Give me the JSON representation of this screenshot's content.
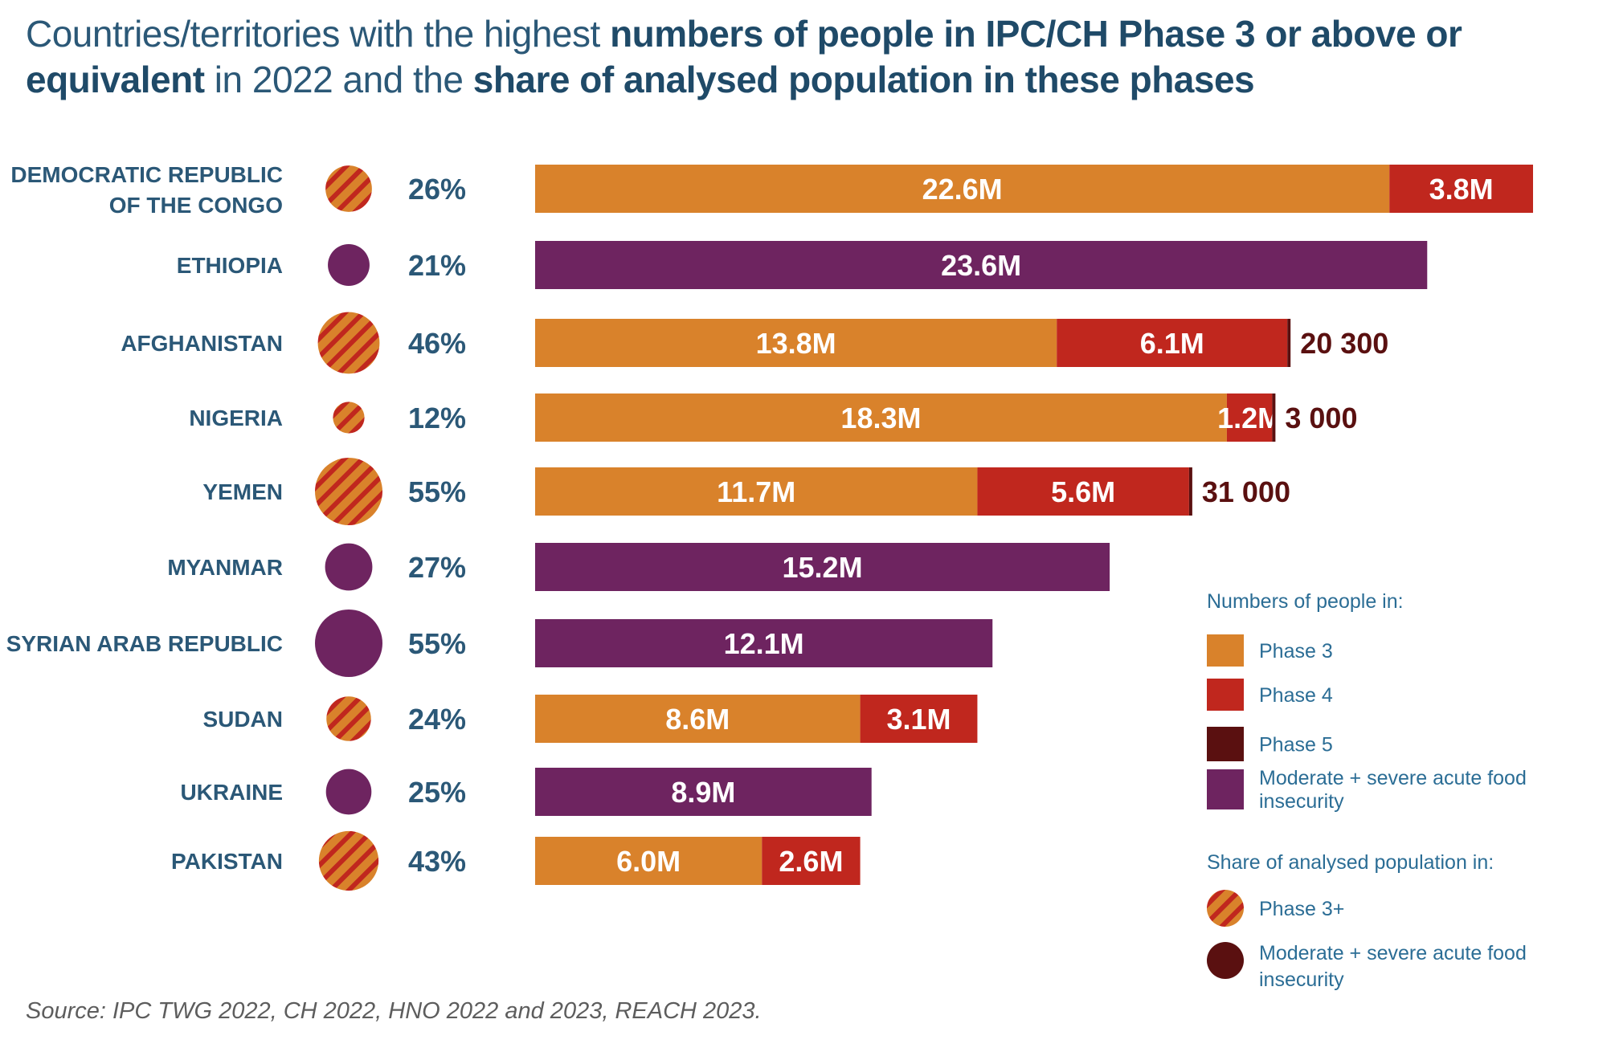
{
  "title": {
    "part1": "Countries/territories with the highest ",
    "bold1": "numbers of people in IPC/CH Phase 3 or above or equivalent",
    "part2": " in 2022 and the ",
    "bold2": "share of analysed population in these phases"
  },
  "colors": {
    "phase3": "#d9822b",
    "phase4": "#c0271e",
    "phase5": "#5a1010",
    "moderate_severe": "#6e2460",
    "stripe": "#c0271e"
  },
  "chart_data": {
    "type": "bar",
    "orientation": "horizontal",
    "stacked": true,
    "unit": "millions of people",
    "categories": [
      [
        "DEMOCRATIC REPUBLIC",
        "OF THE CONGO"
      ],
      [
        "ETHIOPIA"
      ],
      [
        "AFGHANISTAN"
      ],
      [
        "NIGERIA"
      ],
      [
        "YEMEN"
      ],
      [
        "MYANMAR"
      ],
      [
        "SYRIAN ARAB REPUBLIC"
      ],
      [
        "SUDAN"
      ],
      [
        "UKRAINE"
      ],
      [
        "PAKISTAN"
      ]
    ],
    "rows": [
      {
        "share": 26,
        "share_label": "26%",
        "share_type": "phase3plus",
        "segments": [
          {
            "series": "phase3",
            "value": 22.6,
            "label": "22.6M"
          },
          {
            "series": "phase4",
            "value": 3.8,
            "label": "3.8M"
          }
        ]
      },
      {
        "share": 21,
        "share_label": "21%",
        "share_type": "moderate_severe",
        "segments": [
          {
            "series": "moderate_severe",
            "value": 23.6,
            "label": "23.6M"
          }
        ]
      },
      {
        "share": 46,
        "share_label": "46%",
        "share_type": "phase3plus",
        "segments": [
          {
            "series": "phase3",
            "value": 13.8,
            "label": "13.8M"
          },
          {
            "series": "phase4",
            "value": 6.1,
            "label": "6.1M"
          }
        ],
        "phase5_value": 20300,
        "phase5_label": "20 300"
      },
      {
        "share": 12,
        "share_label": "12%",
        "share_type": "phase3plus",
        "segments": [
          {
            "series": "phase3",
            "value": 18.3,
            "label": "18.3M"
          },
          {
            "series": "phase4",
            "value": 1.2,
            "label": "1.2M"
          }
        ],
        "phase5_value": 3000,
        "phase5_label": "3 000"
      },
      {
        "share": 55,
        "share_label": "55%",
        "share_type": "phase3plus",
        "segments": [
          {
            "series": "phase3",
            "value": 11.7,
            "label": "11.7M"
          },
          {
            "series": "phase4",
            "value": 5.6,
            "label": "5.6M"
          }
        ],
        "phase5_value": 31000,
        "phase5_label": "31 000"
      },
      {
        "share": 27,
        "share_label": "27%",
        "share_type": "moderate_severe",
        "segments": [
          {
            "series": "moderate_severe",
            "value": 15.2,
            "label": "15.2M"
          }
        ]
      },
      {
        "share": 55,
        "share_label": "55%",
        "share_type": "moderate_severe",
        "segments": [
          {
            "series": "moderate_severe",
            "value": 12.1,
            "label": "12.1M"
          }
        ]
      },
      {
        "share": 24,
        "share_label": "24%",
        "share_type": "phase3plus",
        "segments": [
          {
            "series": "phase3",
            "value": 8.6,
            "label": "8.6M"
          },
          {
            "series": "phase4",
            "value": 3.1,
            "label": "3.1M"
          }
        ]
      },
      {
        "share": 25,
        "share_label": "25%",
        "share_type": "moderate_severe",
        "segments": [
          {
            "series": "moderate_severe",
            "value": 8.9,
            "label": "8.9M"
          }
        ]
      },
      {
        "share": 43,
        "share_label": "43%",
        "share_type": "phase3plus",
        "segments": [
          {
            "series": "phase3",
            "value": 6.0,
            "label": "6.0M"
          },
          {
            "series": "phase4",
            "value": 2.6,
            "label": "2.6M"
          }
        ]
      }
    ],
    "x_range": [
      0,
      26.4
    ],
    "legend": {
      "numbers_heading": "Numbers of people in:",
      "numbers_items": [
        {
          "series": "phase3",
          "label": [
            "Phase 3"
          ]
        },
        {
          "series": "phase4",
          "label": [
            "Phase 4"
          ]
        },
        {
          "series": "phase5",
          "label": [
            "Phase 5"
          ]
        },
        {
          "series": "moderate_severe",
          "label": [
            "Moderate + severe acute food",
            "insecurity"
          ]
        }
      ],
      "share_heading": "Share of analysed population in:",
      "share_items": [
        {
          "series": "phase3plus",
          "label": [
            "Phase 3+"
          ]
        },
        {
          "series": "moderate_severe",
          "label": [
            "Moderate + severe acute food",
            "insecurity"
          ]
        }
      ]
    }
  },
  "source": "Source: IPC TWG 2022, CH 2022, HNO 2022 and 2023, REACH 2023."
}
